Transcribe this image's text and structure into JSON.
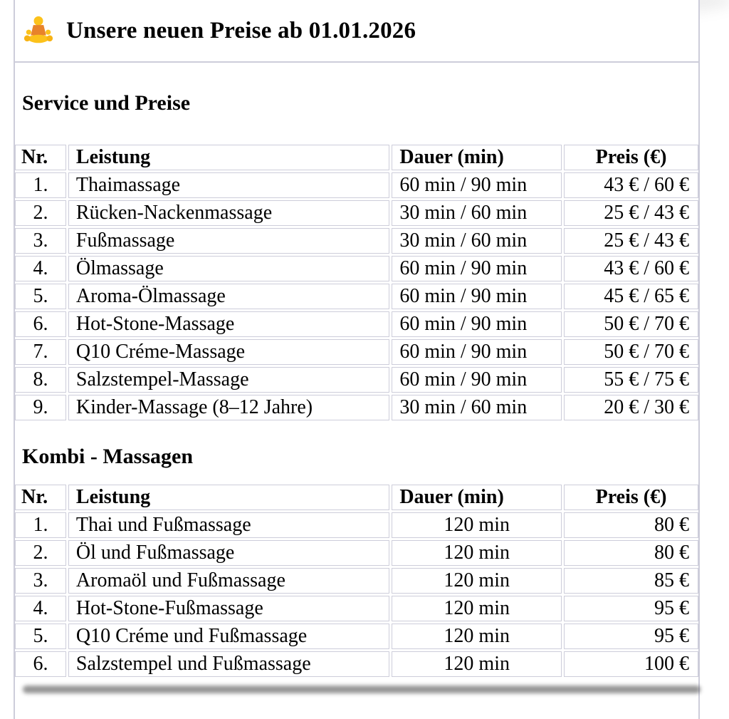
{
  "page": {
    "title": "Unsere neuen Preise ab 01.01.2026",
    "title_icon": "person-in-lotus-position-emoji"
  },
  "sections": [
    {
      "heading": "Service und Preise",
      "columns": [
        "Nr.",
        "Leistung",
        "Dauer (min)",
        "Preis (€)"
      ],
      "rows": [
        [
          "1.",
          "Thaimassage",
          "60 min / 90 min",
          "43 € / 60 €"
        ],
        [
          "2.",
          "Rücken-Nackenmassage",
          "30 min / 60 min",
          "25 € / 43 €"
        ],
        [
          "3.",
          "Fußmassage",
          "30 min / 60 min",
          "25 € / 43 €"
        ],
        [
          "4.",
          "Ölmassage",
          "60 min / 90 min",
          "43 € / 60 €"
        ],
        [
          "5.",
          "Aroma-Ölmassage",
          "60 min / 90 min",
          "45 € / 65 €"
        ],
        [
          "6.",
          "Hot-Stone-Massage",
          "60 min / 90 min",
          "50 € / 70 €"
        ],
        [
          "7.",
          "Q10 Créme-Massage",
          "60 min / 90 min",
          "50 € / 70 €"
        ],
        [
          "8.",
          "Salzstempel-Massage",
          "60 min / 90 min",
          "55 € / 75 €"
        ],
        [
          "9.",
          "Kinder-Massage (8–12 Jahre)",
          "30 min / 60 min",
          "20 € / 30 €"
        ]
      ]
    },
    {
      "heading": "Kombi - Massagen",
      "columns": [
        "Nr.",
        "Leistung",
        "Dauer (min)",
        "Preis (€)"
      ],
      "rows": [
        [
          "1.",
          "Thai und Fußmassage",
          "120 min",
          "80 €"
        ],
        [
          "2.",
          "Öl und Fußmassage",
          "120 min",
          "80 €"
        ],
        [
          "3.",
          "Aromaöl und Fußmassage",
          "120 min",
          "85 €"
        ],
        [
          "4.",
          "Hot-Stone-Fußmassage",
          "120 min",
          "95 €"
        ],
        [
          "5.",
          "Q10 Créme und Fußmassage",
          "120 min",
          "95 €"
        ],
        [
          "6.",
          "Salzstempel und Fußmassage",
          "120 min",
          "100 €"
        ]
      ]
    }
  ],
  "colors": {
    "border": "#cdcdda",
    "text": "#000000"
  }
}
